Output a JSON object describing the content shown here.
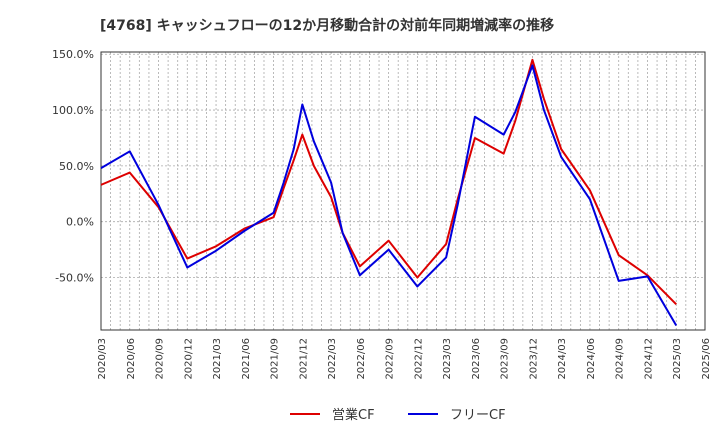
{
  "chart_data": {
    "type": "line",
    "title": "[4768]  キャッシュフローの12か月移動合計の対前年同期増減率の推移",
    "xlabel": "",
    "ylabel": "",
    "ylim": [
      -97,
      152
    ],
    "yticks": [
      150,
      100,
      50,
      0,
      -50
    ],
    "ytick_labels": [
      "150.0%",
      "100.0%",
      "50.0%",
      "0.0%",
      "-50.0%"
    ],
    "grid": true,
    "legend": "bottom",
    "x": [
      "2020/03",
      "2020/06",
      "2020/09",
      "2020/12",
      "2021/03",
      "2021/06",
      "2021/09",
      "2021/12",
      "2022/03",
      "2022/06",
      "2022/09",
      "2022/12",
      "2023/03",
      "2023/06",
      "2023/09",
      "2023/12",
      "2024/03",
      "2024/06",
      "2024/09",
      "2024/12",
      "2025/03",
      "2025/06"
    ],
    "series": [
      {
        "name": "営業CF",
        "color": "#dd0000",
        "values": [
          [
            0,
            33
          ],
          [
            1,
            44
          ],
          [
            2,
            13
          ],
          [
            3,
            -33
          ],
          [
            4,
            -22
          ],
          [
            5,
            -6
          ],
          [
            6,
            4
          ],
          [
            6.35,
            30
          ],
          [
            6.7,
            55
          ],
          [
            7,
            78
          ],
          [
            7.4,
            50
          ],
          [
            8,
            22
          ],
          [
            8.4,
            -10
          ],
          [
            9,
            -40
          ],
          [
            10,
            -17
          ],
          [
            11,
            -50
          ],
          [
            12,
            -20
          ],
          [
            12.4,
            20
          ],
          [
            13,
            75
          ],
          [
            14,
            61
          ],
          [
            14.4,
            90
          ],
          [
            15,
            145
          ],
          [
            15.4,
            110
          ],
          [
            16,
            65
          ],
          [
            17,
            28
          ],
          [
            18,
            -30
          ],
          [
            19,
            -48
          ],
          [
            20,
            -74
          ]
        ]
      },
      {
        "name": "フリーCF",
        "color": "#0000dd",
        "values": [
          [
            0,
            48
          ],
          [
            1,
            63
          ],
          [
            2,
            15
          ],
          [
            3,
            -41
          ],
          [
            4,
            -26
          ],
          [
            5,
            -8
          ],
          [
            6,
            8
          ],
          [
            6.35,
            35
          ],
          [
            6.7,
            65
          ],
          [
            7,
            105
          ],
          [
            7.4,
            72
          ],
          [
            8,
            35
          ],
          [
            8.4,
            -10
          ],
          [
            9,
            -48
          ],
          [
            10,
            -25
          ],
          [
            11,
            -58
          ],
          [
            12,
            -32
          ],
          [
            12.4,
            15
          ],
          [
            13,
            94
          ],
          [
            14,
            78
          ],
          [
            14.4,
            98
          ],
          [
            15,
            140
          ],
          [
            15.4,
            100
          ],
          [
            16,
            58
          ],
          [
            17,
            20
          ],
          [
            18,
            -53
          ],
          [
            19,
            -49
          ],
          [
            20,
            -93
          ]
        ]
      }
    ]
  }
}
